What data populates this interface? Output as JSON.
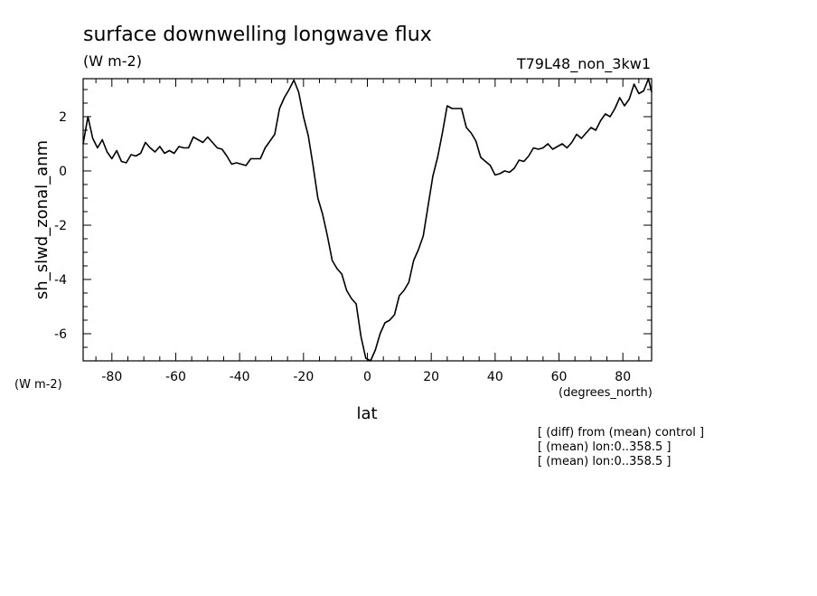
{
  "chart_data": {
    "type": "line",
    "title": "surface downwelling longwave flux",
    "units": "(W m-2)",
    "experiment": "T79L48_non_3kw1",
    "ylabel": "sh_slwd_zonal_anm",
    "ylabel_units": "(W m-2)",
    "xlabel": "lat",
    "xlabel_units": "(degrees_north)",
    "xlim": [
      -89,
      89
    ],
    "ylim": [
      -7,
      3.4
    ],
    "x_ticks": [
      -80,
      -60,
      -40,
      -20,
      0,
      20,
      40,
      60,
      80
    ],
    "x_tick_labels": [
      "-80",
      "-60",
      "-40",
      "-20",
      "0",
      "20",
      "40",
      "60",
      "80"
    ],
    "y_ticks": [
      -6,
      -4,
      -2,
      0,
      2
    ],
    "y_tick_labels": [
      "-6",
      "-4",
      "-2",
      "0",
      "2"
    ],
    "notes": [
      "[ (diff) from (mean) control ]",
      "[ (mean) lon:0..358.5 ]",
      "[ (mean) lon:0..358.5 ]"
    ],
    "series": [
      {
        "x": [
          -89,
          -87.5,
          -86,
          -84.5,
          -83,
          -81.5,
          -80,
          -78.5,
          -77,
          -75.5,
          -74,
          -72.5,
          -71,
          -69.5,
          -68,
          -66.5,
          -65,
          -63.5,
          -62,
          -60.5,
          -59,
          -57.5,
          -56,
          -54.5,
          -53,
          -51.5,
          -50,
          -48.5,
          -47,
          -45.5,
          -44,
          -42.5,
          -41,
          -39.5,
          -38,
          -36.5,
          -35,
          -33.5,
          -32,
          -30.5,
          -29,
          -27.5,
          -26,
          -24.5,
          -23,
          -21.5,
          -20,
          -18.5,
          -17,
          -15.5,
          -14,
          -12.5,
          -11,
          -9.5,
          -8,
          -6.5,
          -5,
          -3.5,
          -2,
          -0.5,
          1,
          2.5,
          4,
          5.5,
          7,
          8.5,
          10,
          11.5,
          13,
          14.5,
          16,
          17.5,
          19,
          20.5,
          22,
          23.5,
          25,
          26.5,
          28,
          29.5,
          31,
          32.5,
          34,
          35.5,
          37,
          38.5,
          40,
          41.5,
          43,
          44.5,
          46,
          47.5,
          49,
          50.5,
          52,
          53.5,
          55,
          56.5,
          58,
          59.5,
          61,
          62.5,
          64,
          65.5,
          67,
          68.5,
          70,
          71.5,
          73,
          74.5,
          76,
          77.5,
          79,
          80.5,
          82,
          83.5,
          85,
          86.5,
          88,
          89
        ],
        "y": [
          1.0,
          2.0,
          1.2,
          0.85,
          1.15,
          0.7,
          0.45,
          0.75,
          0.35,
          0.3,
          0.6,
          0.55,
          0.65,
          1.05,
          0.85,
          0.7,
          0.9,
          0.65,
          0.75,
          0.65,
          0.9,
          0.85,
          0.85,
          1.25,
          1.15,
          1.05,
          1.25,
          1.05,
          0.85,
          0.8,
          0.55,
          0.25,
          0.3,
          0.25,
          0.2,
          0.45,
          0.45,
          0.45,
          0.85,
          1.1,
          1.35,
          2.3,
          2.7,
          3.0,
          3.35,
          2.9,
          2.0,
          1.3,
          0.2,
          -1.0,
          -1.6,
          -2.4,
          -3.3,
          -3.6,
          -3.8,
          -4.4,
          -4.7,
          -4.9,
          -6.1,
          -6.9,
          -7.0,
          -6.6,
          -6.0,
          -5.6,
          -5.5,
          -5.3,
          -4.6,
          -4.4,
          -4.1,
          -3.3,
          -2.9,
          -2.4,
          -1.3,
          -0.2,
          0.5,
          1.4,
          2.4,
          2.3,
          2.3,
          2.3,
          1.6,
          1.4,
          1.1,
          0.5,
          0.35,
          0.2,
          -0.15,
          -0.1,
          0.0,
          -0.05,
          0.1,
          0.4,
          0.35,
          0.55,
          0.85,
          0.8,
          0.85,
          1.0,
          0.8,
          0.9,
          1.0,
          0.85,
          1.05,
          1.35,
          1.2,
          1.4,
          1.6,
          1.5,
          1.85,
          2.1,
          2.0,
          2.3,
          2.7,
          2.4,
          2.65,
          3.2,
          2.85,
          2.95,
          3.4,
          2.9
        ]
      }
    ]
  },
  "colors": {
    "line": "#000000",
    "background": "#ffffff"
  }
}
